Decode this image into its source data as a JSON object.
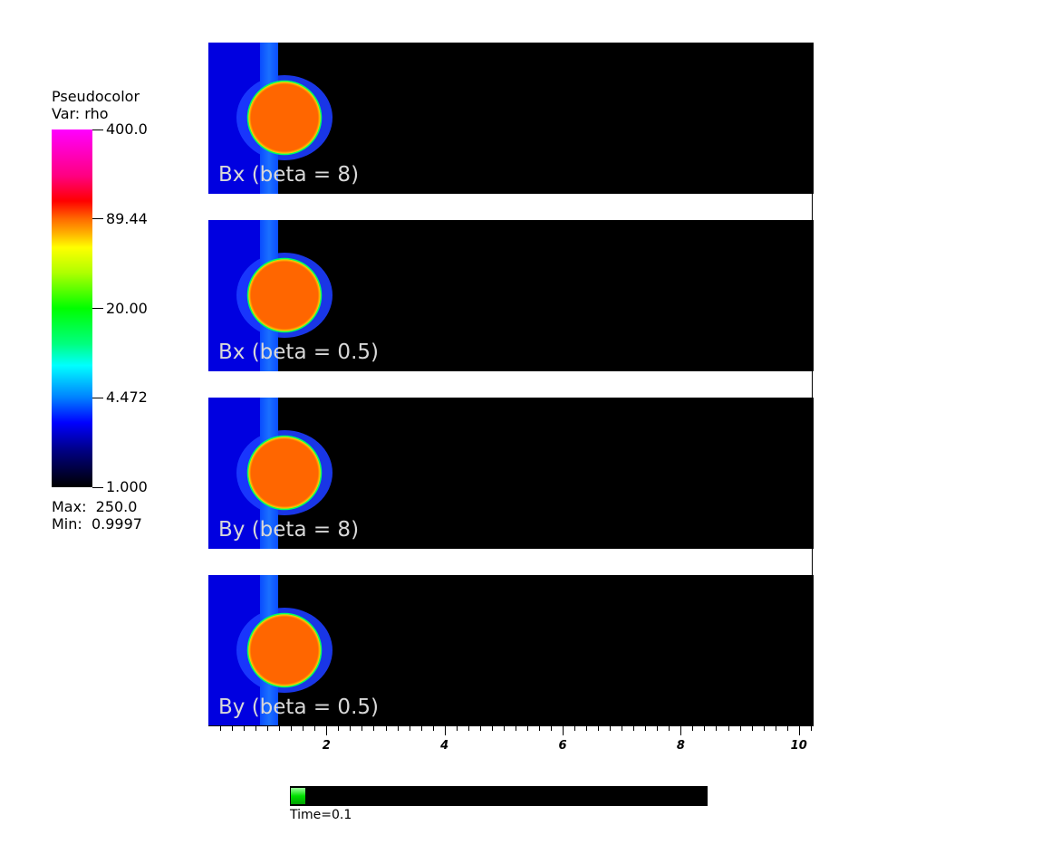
{
  "chart_data": {
    "type": "heatmap",
    "title": "",
    "xlabel": "",
    "ylabel": "",
    "xlim": [
      0,
      10.25
    ],
    "x_ticks": [
      2,
      4,
      6,
      8,
      10
    ],
    "x_minor_step": 0.2,
    "legend": {
      "title": "Pseudocolor",
      "var": "Var: rho",
      "scale": "log",
      "range": [
        1.0,
        400.0
      ],
      "tick_labels": [
        "400.0",
        "89.44",
        "20.00",
        "4.472",
        "1.000"
      ],
      "max_text": "Max:  250.0",
      "min_text": "Min:  0.9997",
      "placement": "left"
    },
    "panels": [
      {
        "label": "Bx (beta = 8)"
      },
      {
        "label": "Bx (beta = 0.5)"
      },
      {
        "label": "By (beta = 8)"
      },
      {
        "label": "By (beta = 0.5)"
      }
    ],
    "colors": {
      "background_region": "#0000e0",
      "shock_band": "#0a55ff",
      "bow_shell": "#1c3cff",
      "cloud": "#ff6600",
      "cloud_rim": "#ff1a00",
      "cloud_edge": "#00ff60",
      "downstream": "#000000"
    },
    "time": {
      "label": "Time=0.1",
      "progress": 0.035
    }
  }
}
